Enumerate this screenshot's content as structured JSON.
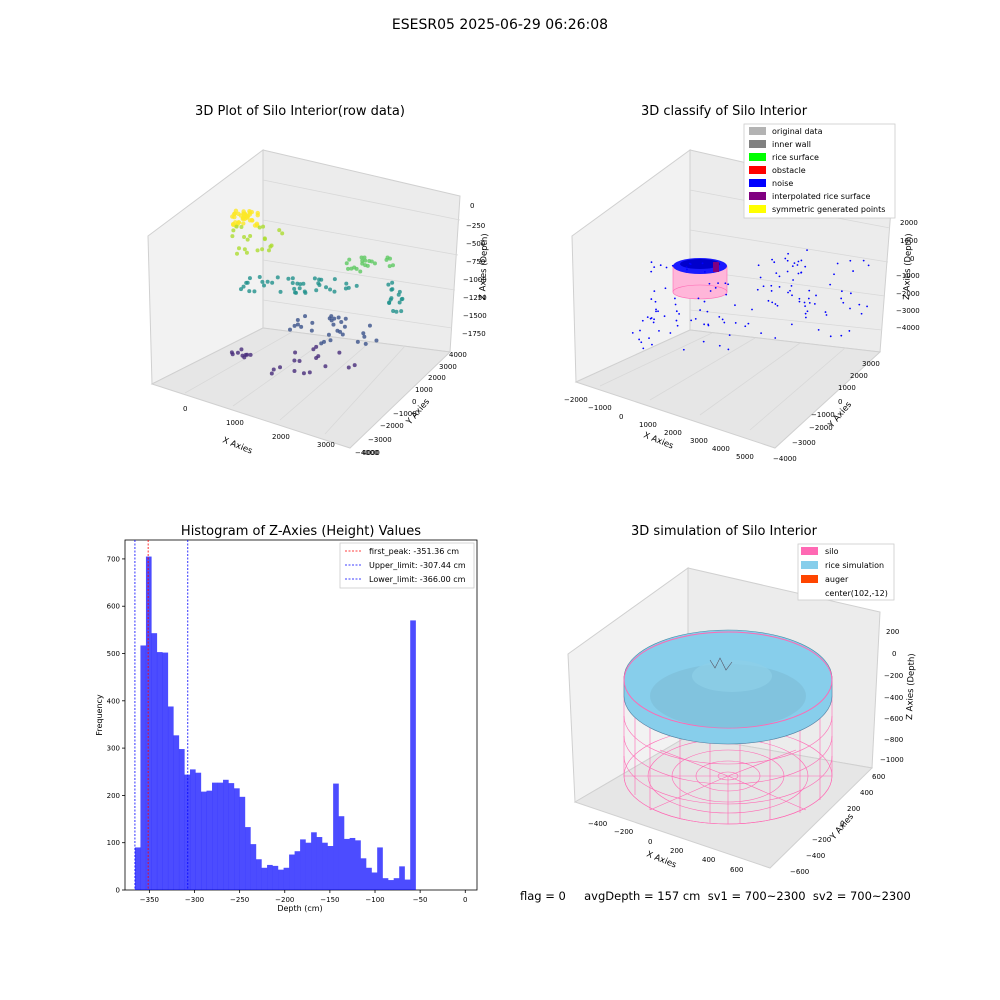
{
  "suptitle": "ESESR05 2025-06-29 06:26:08",
  "panel1": {
    "title": "3D Plot of Silo Interior(row data)",
    "xlabel": "X Axies",
    "ylabel": "Y Axies",
    "zlabel": "Z Axies (Depth)",
    "xticks": [
      "0",
      "1000",
      "2000",
      "3000",
      "4000"
    ],
    "yticks": [
      "−4000",
      "−3000",
      "−2000",
      "−1000",
      "0",
      "1000",
      "2000",
      "3000",
      "4000"
    ],
    "zticks": [
      "0",
      "−250",
      "−500",
      "−750",
      "−1000",
      "−1250",
      "−1500",
      "−1750"
    ]
  },
  "panel2": {
    "title": "3D classify of Silo Interior",
    "xlabel": "X Axies",
    "ylabel": "Y Axies",
    "zlabel": "Z Axies (Depth)",
    "xticks": [
      "−2000",
      "−1000",
      "0",
      "1000",
      "2000",
      "3000",
      "4000",
      "5000"
    ],
    "yticks": [
      "−4000",
      "−3000",
      "−2000",
      "−1000",
      "0",
      "1000",
      "2000",
      "3000"
    ],
    "zticks": [
      "2000",
      "1000",
      "0",
      "−1000",
      "−2000",
      "−3000",
      "−4000"
    ],
    "legend": [
      {
        "label": "original data",
        "color": "#b3b3b3"
      },
      {
        "label": "inner wall",
        "color": "#808080"
      },
      {
        "label": "rice surface",
        "color": "#00ff00"
      },
      {
        "label": "obstacle",
        "color": "#ff0000"
      },
      {
        "label": "noise",
        "color": "#0000ff"
      },
      {
        "label": "interpolated rice surface",
        "color": "#800080"
      },
      {
        "label": "symmetric generated points",
        "color": "#ffff00"
      }
    ]
  },
  "panel4": {
    "title": "3D simulation of Silo Interior",
    "xlabel": "X Axies",
    "ylabel": "Y Axies",
    "zlabel": "Z Axies (Depth)",
    "xticks": [
      "−400",
      "−200",
      "0",
      "200",
      "400",
      "600"
    ],
    "yticks": [
      "−600",
      "−400",
      "−200",
      "0",
      "200",
      "400",
      "600"
    ],
    "zticks": [
      "200",
      "0",
      "−200",
      "−400",
      "−600",
      "−800",
      "−1000"
    ],
    "legend": [
      {
        "label": "silo",
        "color": "#ff69b4"
      },
      {
        "label": "rice simulation",
        "color": "#87ceeb"
      },
      {
        "label": "auger",
        "color": "#ff4500"
      },
      {
        "label": "center(102,-12)",
        "color": ""
      }
    ]
  },
  "footer": "flag = 0     avgDepth = 157 cm  sv1 = 700~2300  sv2 = 700~2300",
  "chart_data": {
    "type": "bar",
    "title": "Histogram of Z-Axies (Height) Values",
    "xlabel": "Depth (cm)",
    "ylabel": "Frequency",
    "xlim": [
      -377,
      13
    ],
    "ylim": [
      0,
      740
    ],
    "xticks": [
      -350,
      -300,
      -250,
      -200,
      -150,
      -100,
      -50,
      0
    ],
    "xtick_labels": [
      "−350",
      "−300",
      "−250",
      "−200",
      "−150",
      "−100",
      "−50",
      "0"
    ],
    "yticks": [
      0,
      100,
      200,
      300,
      400,
      500,
      600,
      700
    ],
    "bar_color": "#0000ff",
    "bin_width": 6.1,
    "bins_start": [
      -366,
      -359.9,
      -353.8,
      -347.7,
      -341.6,
      -335.5,
      -329.4,
      -323.3,
      -317.2,
      -311.1,
      -305,
      -298.9,
      -292.8,
      -286.7,
      -280.6,
      -274.5,
      -268.4,
      -262.3,
      -256.2,
      -250.1,
      -244,
      -237.9,
      -231.8,
      -225.7,
      -219.6,
      -213.5,
      -207.4,
      -201.3,
      -195.2,
      -189.1,
      -183,
      -176.9,
      -170.8,
      -164.7,
      -158.6,
      -152.5,
      -146.4,
      -140.3,
      -134.2,
      -128.1,
      -122,
      -115.9,
      -109.8,
      -103.7,
      -97.6,
      -91.5,
      -85.4,
      -79.3,
      -73.2,
      -67.1,
      -61,
      -54.9,
      -48.8,
      -42.7,
      -36.6,
      -30.5,
      -24.4,
      -18.3,
      -12.2,
      -6.1
    ],
    "values": [
      90,
      517,
      705,
      543,
      503,
      502,
      388,
      327,
      298,
      244,
      255,
      248,
      208,
      210,
      227,
      227,
      233,
      226,
      215,
      197,
      133,
      97,
      65,
      47,
      53,
      51,
      43,
      47,
      75,
      82,
      107,
      100,
      122,
      112,
      100,
      93,
      225,
      156,
      108,
      110,
      105,
      67,
      47,
      37,
      90,
      25,
      21,
      25,
      50,
      22,
      570,
      0,
      0,
      0,
      0,
      0,
      0,
      0,
      0,
      0
    ],
    "vlines": [
      {
        "label": "first_peak: -351.36 cm",
        "x": -351.36,
        "color": "#ff0000"
      },
      {
        "label": "Upper_limit: -307.44 cm",
        "x": -307.44,
        "color": "#0000ff"
      },
      {
        "label": "Lower_limit: -366.00 cm",
        "x": -366.0,
        "color": "#0000ff"
      }
    ]
  }
}
